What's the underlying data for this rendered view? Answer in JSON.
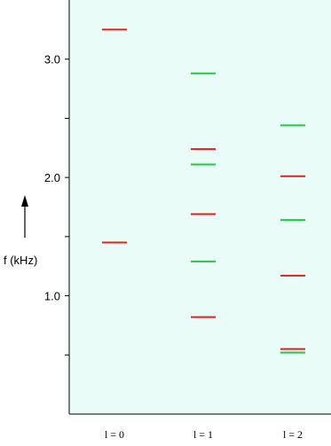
{
  "chart_data": {
    "type": "scatter",
    "marker": "horizontal-level-line",
    "ylabel": "f (kHz)",
    "ylim": [
      0.0,
      3.5
    ],
    "yticks": [
      {
        "value": 0.5,
        "label": ""
      },
      {
        "value": 1.0,
        "label": "1.0"
      },
      {
        "value": 1.5,
        "label": ""
      },
      {
        "value": 2.0,
        "label": "2.0"
      },
      {
        "value": 2.5,
        "label": ""
      },
      {
        "value": 3.0,
        "label": "3.0"
      }
    ],
    "categories": [
      "l = 0",
      "l = 1",
      "l = 2"
    ],
    "series": [
      {
        "color": "#e02020",
        "points": [
          {
            "category": 0,
            "y": 3.25
          },
          {
            "category": 0,
            "y": 1.45
          },
          {
            "category": 1,
            "y": 2.24
          },
          {
            "category": 1,
            "y": 1.69
          },
          {
            "category": 1,
            "y": 0.82
          },
          {
            "category": 2,
            "y": 2.01
          },
          {
            "category": 2,
            "y": 1.17
          },
          {
            "category": 2,
            "y": 0.55
          }
        ]
      },
      {
        "color": "#22c840",
        "points": [
          {
            "category": 1,
            "y": 2.88
          },
          {
            "category": 1,
            "y": 2.11
          },
          {
            "category": 1,
            "y": 1.29
          },
          {
            "category": 2,
            "y": 2.44
          },
          {
            "category": 2,
            "y": 1.64
          },
          {
            "category": 2,
            "y": 0.52
          }
        ]
      }
    ],
    "background_color": "#eafcf8",
    "grid": false
  }
}
